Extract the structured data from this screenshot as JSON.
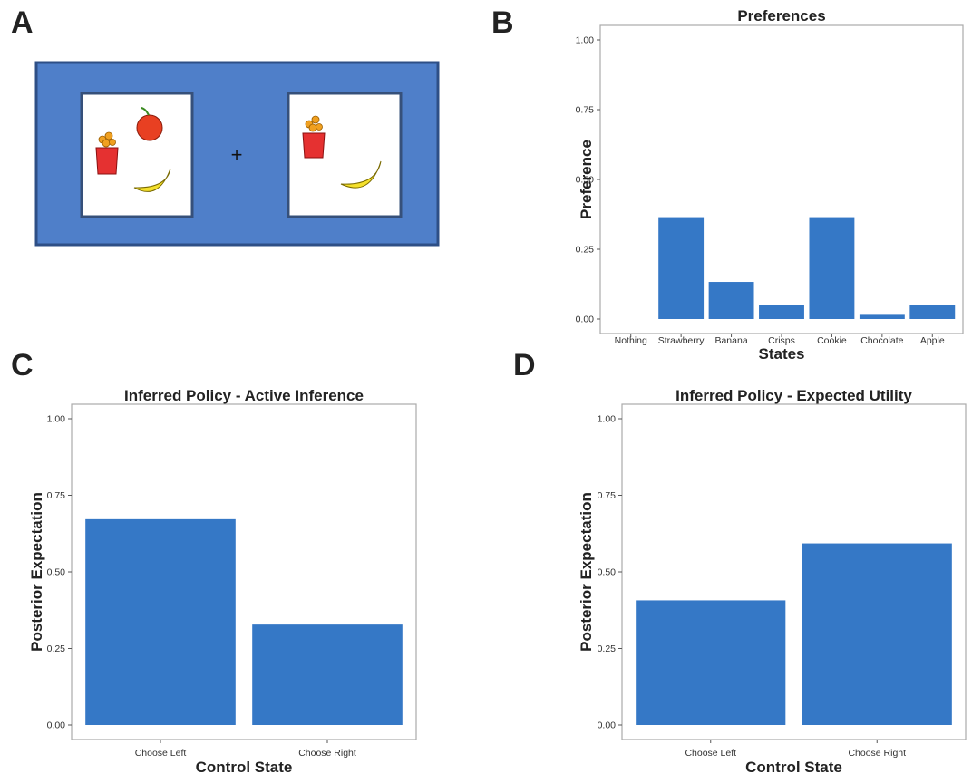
{
  "panels": {
    "a": {
      "letter": "A"
    },
    "b": {
      "letter": "B"
    },
    "c": {
      "letter": "C"
    },
    "d": {
      "letter": "D"
    }
  },
  "stimulus": {
    "background_color": "#4f7fc9",
    "fixation": "+",
    "left_card_items": [
      "crisps-icon",
      "apple-icon",
      "banana-icon"
    ],
    "right_card_items": [
      "crisps-icon",
      "banana-icon"
    ]
  },
  "colors": {
    "bar": "#3578c6",
    "frame": "#aaaaaa"
  },
  "chart_data": [
    {
      "id": "preferences",
      "type": "bar",
      "title": "Preferences",
      "xlabel": "States",
      "ylabel": "Preference",
      "categories": [
        "Nothing",
        "Strawberry",
        "Banana",
        "Crisps",
        "Cookie",
        "Chocolate",
        "Apple"
      ],
      "values": [
        0.0,
        0.365,
        0.133,
        0.05,
        0.365,
        0.015,
        0.05
      ],
      "ylim": [
        0,
        1
      ],
      "yticks": [
        "0.00",
        "0.25",
        "0.50",
        "0.75",
        "1.00"
      ],
      "grid": false
    },
    {
      "id": "active_inference",
      "type": "bar",
      "title": "Inferred Policy - Active Inference",
      "xlabel": "Control State",
      "ylabel": "Posterior Expectation",
      "categories": [
        "Choose Left",
        "Choose Right"
      ],
      "values": [
        0.672,
        0.328
      ],
      "ylim": [
        0,
        1
      ],
      "yticks": [
        "0.00",
        "0.25",
        "0.50",
        "0.75",
        "1.00"
      ],
      "grid": false
    },
    {
      "id": "expected_utility",
      "type": "bar",
      "title": "Inferred Policy - Expected Utility",
      "xlabel": "Control State",
      "ylabel": "Posterior Expectation",
      "categories": [
        "Choose Left",
        "Choose Right"
      ],
      "values": [
        0.407,
        0.593
      ],
      "ylim": [
        0,
        1
      ],
      "yticks": [
        "0.00",
        "0.25",
        "0.50",
        "0.75",
        "1.00"
      ],
      "grid": false
    }
  ]
}
